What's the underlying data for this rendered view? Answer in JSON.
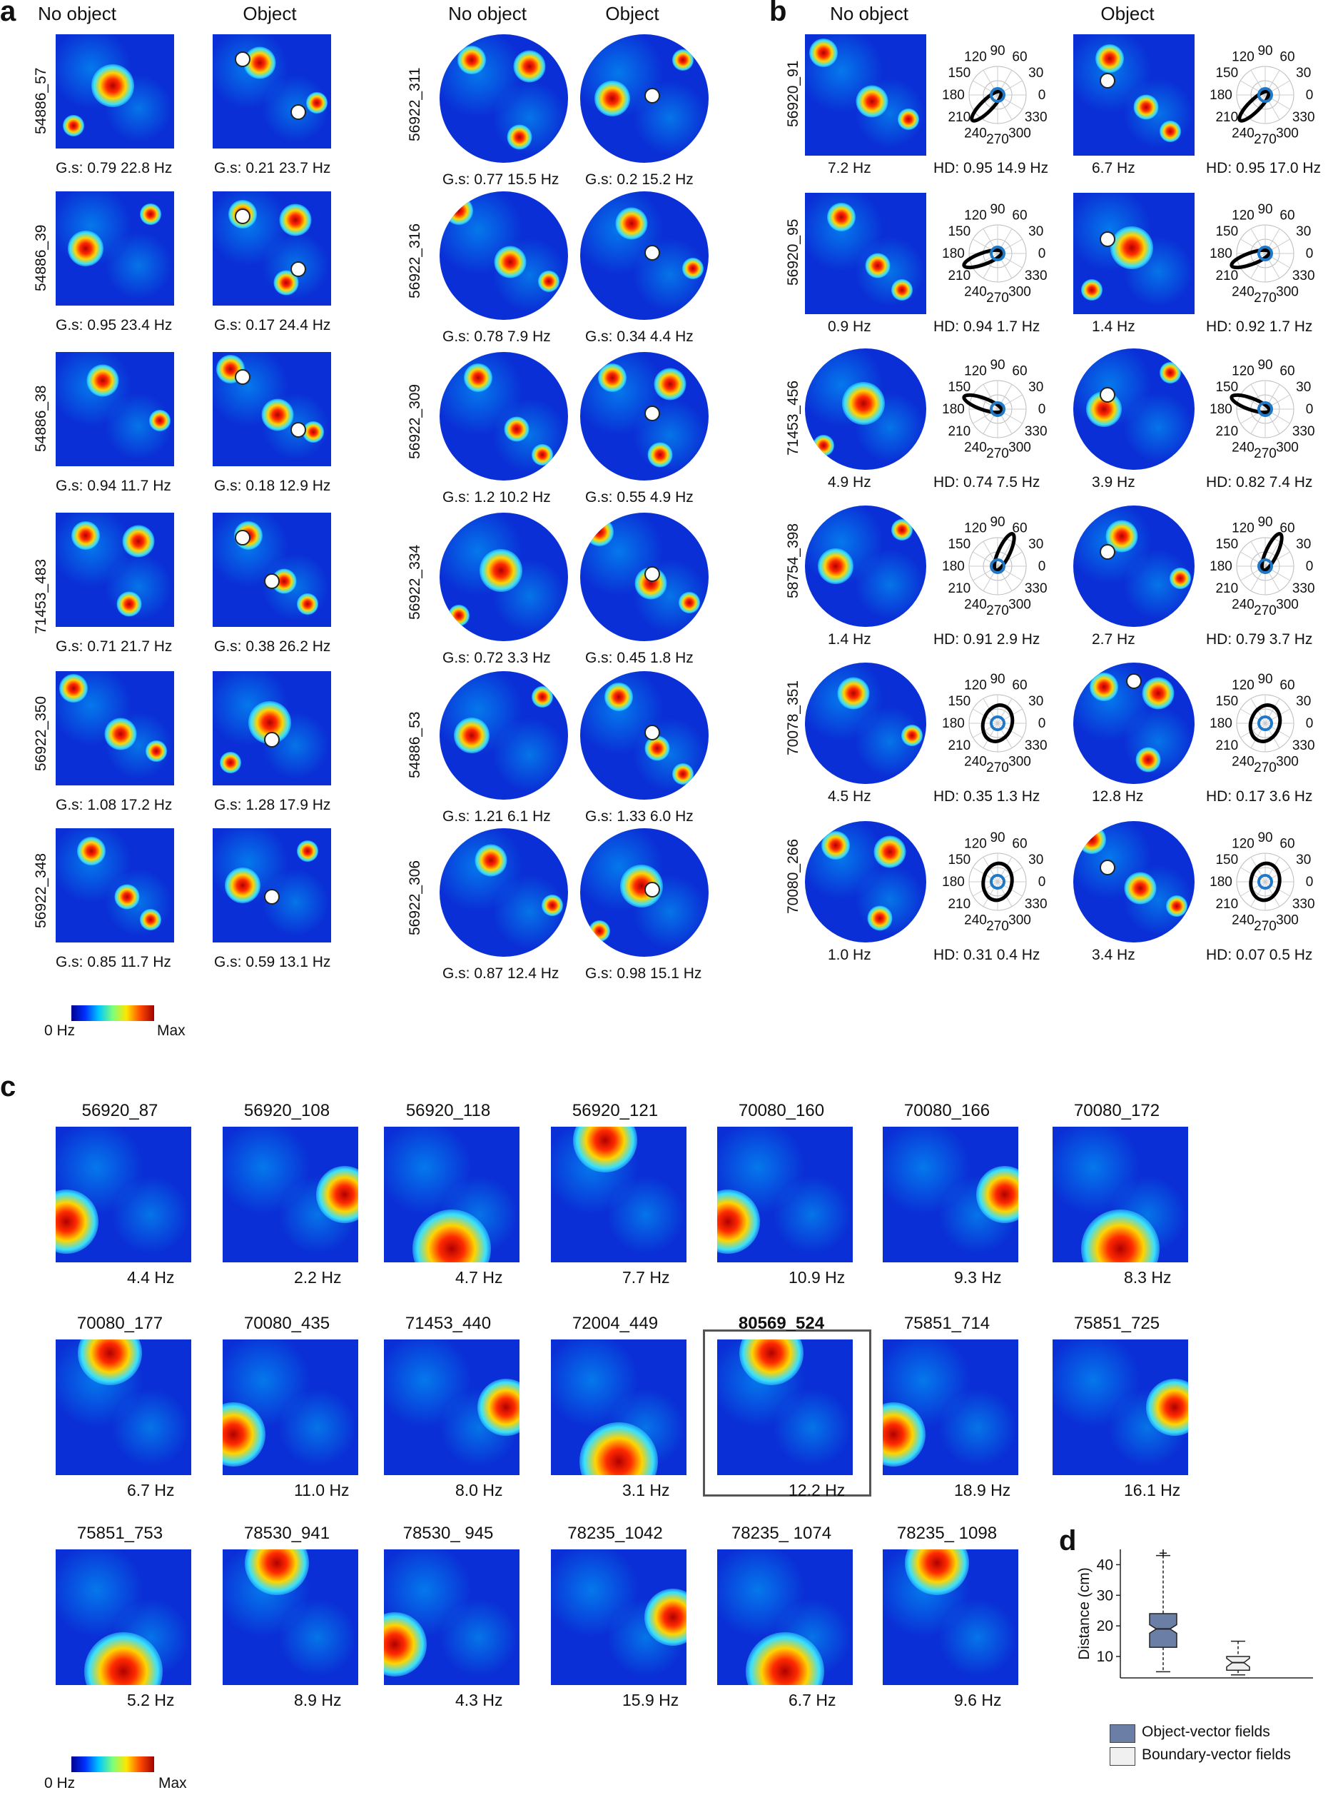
{
  "panels": {
    "a": "a",
    "b": "b",
    "c": "c",
    "d": "d"
  },
  "headers": {
    "no_object": "No object",
    "object": "Object"
  },
  "panel_a": {
    "left": [
      {
        "id": "54886_57",
        "no": "G.s: 0.79   22.8 Hz",
        "obj": "G.s: 0.21   23.7 Hz"
      },
      {
        "id": "54886_39",
        "no": "G.s: 0.95  23.4 Hz",
        "obj": "G.s: 0.17   24.4 Hz"
      },
      {
        "id": "54886_38",
        "no": "G.s: 0.94  11.7 Hz",
        "obj": "G.s: 0.18   12.9 Hz"
      },
      {
        "id": "71453_483",
        "no": "G.s: 0.71  21.7 Hz",
        "obj": "G.s: 0.38  26.2 Hz"
      },
      {
        "id": "56922_350",
        "no": "G.s: 1.08   17.2 Hz",
        "obj": "G.s: 1.28   17.9 Hz"
      },
      {
        "id": "56922_348",
        "no": "G.s: 0.85   11.7 Hz",
        "obj": "G.s: 0.59  13.1 Hz"
      }
    ],
    "right": [
      {
        "id": "56922_311",
        "no": "G.s: 0.77   15.5 Hz",
        "obj": "G.s: 0.2    15.2 Hz"
      },
      {
        "id": "56922_316",
        "no": "G.s: 0.78   7.9 Hz",
        "obj": "G.s: 0.34   4.4 Hz"
      },
      {
        "id": "56922_309",
        "no": "G.s: 1.2    10.2 Hz",
        "obj": "G.s: 0.55   4.9 Hz"
      },
      {
        "id": "56922_334",
        "no": "G.s: 0.72  3.3 Hz",
        "obj": "G.s: 0.45   1.8 Hz"
      },
      {
        "id": "54886_53",
        "no": "G.s: 1.21   6.1 Hz",
        "obj": "G.s: 1.33   6.0 Hz"
      },
      {
        "id": "56922_306",
        "no": "G.s: 0.87   12.4 Hz",
        "obj": "G.s: 0.98   15.1 Hz"
      }
    ],
    "colorbar": {
      "min": "0 Hz",
      "max": "Max"
    }
  },
  "panel_b": {
    "rows": [
      {
        "id": "56920_91",
        "no_rate": "7.2 Hz",
        "no_hd": "HD: 0.95  14.9 Hz",
        "obj_rate": "6.7 Hz",
        "obj_hd": "HD: 0.95  17.0 Hz"
      },
      {
        "id": "56920_95",
        "no_rate": "0.9 Hz",
        "no_hd": "HD: 0.94   1.7 Hz",
        "obj_rate": "1.4 Hz",
        "obj_hd": "HD: 0.92   1.7 Hz"
      },
      {
        "id": "71453_456",
        "no_rate": "4.9 Hz",
        "no_hd": "HD: 0.74   7.5 Hz",
        "obj_rate": "3.9 Hz",
        "obj_hd": "HD: 0.82   7.4 Hz"
      },
      {
        "id": "58754_398",
        "no_rate": "1.4 Hz",
        "no_hd": "HD: 0.91   2.9 Hz",
        "obj_rate": "2.7 Hz",
        "obj_hd": "HD: 0.79   3.7 Hz"
      },
      {
        "id": "70078_351",
        "no_rate": "4.5 Hz",
        "no_hd": "HD: 0.35   1.3 Hz",
        "obj_rate": "12.8 Hz",
        "obj_hd": "HD: 0.17   3.6 Hz"
      },
      {
        "id": "70080_266",
        "no_rate": "1.0 Hz",
        "no_hd": "HD: 0.31   0.4 Hz",
        "obj_rate": "3.4 Hz",
        "obj_hd": "HD: 0.07   0.5 Hz"
      }
    ],
    "polar_labels": [
      "90",
      "60",
      "30",
      "0",
      "330",
      "300",
      "270",
      "240",
      "210",
      "180",
      "150",
      "120"
    ]
  },
  "panel_c": {
    "rows": [
      [
        {
          "id": "56920_87",
          "rate": "4.4 Hz"
        },
        {
          "id": "56920_108",
          "rate": "2.2 Hz"
        },
        {
          "id": "56920_118",
          "rate": "4.7 Hz"
        },
        {
          "id": "56920_121",
          "rate": "7.7 Hz"
        },
        {
          "id": "70080_160",
          "rate": "10.9 Hz"
        },
        {
          "id": "70080_166",
          "rate": "9.3 Hz"
        },
        {
          "id": "70080_172",
          "rate": "8.3 Hz"
        }
      ],
      [
        {
          "id": "70080_177",
          "rate": "6.7 Hz"
        },
        {
          "id": "70080_435",
          "rate": "11.0 Hz"
        },
        {
          "id": "71453_440",
          "rate": "8.0 Hz"
        },
        {
          "id": "72004_449",
          "rate": "3.1 Hz"
        },
        {
          "id": "80569_524",
          "rate": "12.2 Hz",
          "bold": true
        },
        {
          "id": "75851_714",
          "rate": "18.9 Hz"
        },
        {
          "id": "75851_725",
          "rate": "16.1 Hz"
        }
      ],
      [
        {
          "id": "75851_753",
          "rate": "5.2 Hz"
        },
        {
          "id": "78530_941",
          "rate": "8.9 Hz"
        },
        {
          "id": "78530_ 945",
          "rate": "4.3 Hz"
        },
        {
          "id": "78235_1042",
          "rate": "15.9 Hz"
        },
        {
          "id": "78235_ 1074",
          "rate": "6.7 Hz"
        },
        {
          "id": "78235_ 1098",
          "rate": "9.6 Hz"
        }
      ]
    ],
    "colorbar": {
      "min": "0 Hz",
      "max": "Max"
    }
  },
  "chart_data": {
    "type": "box",
    "ylabel": "Distance (cm)",
    "yticks": [
      "10",
      "20",
      "30",
      "40"
    ],
    "ylim": [
      3,
      45
    ],
    "series": [
      {
        "name": "Object-vector fields",
        "color": "#6b7ea6",
        "whisker_low": 5,
        "q1": 13,
        "median": 19,
        "q3": 24,
        "whisker_high": 43,
        "outlier": 43.5
      },
      {
        "name": "Boundary-vector fields",
        "color": "#f0f0f0",
        "whisker_low": 4,
        "q1": 5.5,
        "median": 8,
        "q3": 10,
        "whisker_high": 15
      }
    ]
  }
}
